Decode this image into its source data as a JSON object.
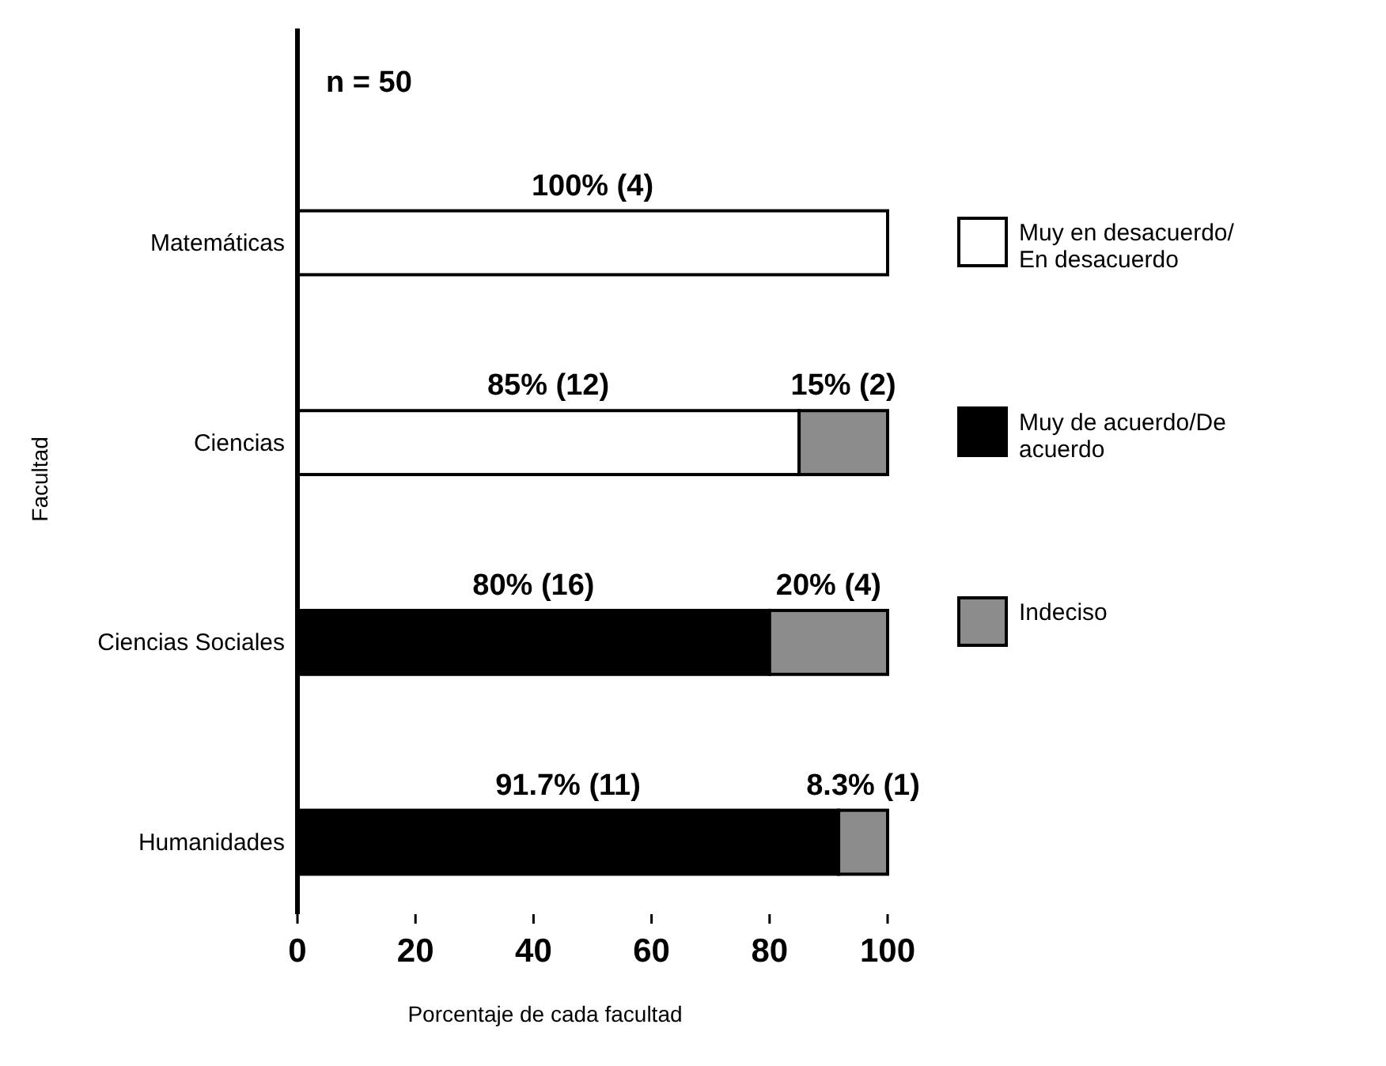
{
  "chart_data": {
    "type": "bar",
    "orientation": "horizontal",
    "stacked": true,
    "xlabel": "Porcentaje de cada facultad",
    "ylabel": "Facultad",
    "annotations": [
      "n = 50"
    ],
    "categories": [
      "Matemáticas",
      "Ciencias",
      "Ciencias Sociales",
      "Humanidades"
    ],
    "xlim": [
      0,
      100
    ],
    "xticks": [
      0,
      20,
      40,
      60,
      80,
      100
    ],
    "grid": false,
    "legend": "right",
    "series": [
      {
        "name": "Muy en desacuerdo/ En desacuerdo",
        "color": "#ffffff",
        "values": [
          100,
          85,
          null,
          null
        ],
        "value_labels": [
          "100% (4)",
          "85% (12)",
          null,
          null
        ]
      },
      {
        "name": "Muy de acuerdo/De acuerdo",
        "color": "#000000",
        "values": [
          null,
          null,
          80,
          91.7
        ],
        "value_labels": [
          null,
          null,
          "80% (16)",
          "91.7% (11)"
        ]
      },
      {
        "name": "Indeciso",
        "color": "#8c8c8c",
        "values": [
          null,
          15,
          20,
          8.3
        ],
        "value_labels": [
          null,
          "15% (2)",
          "20% (4)",
          "8.3% (1)"
        ]
      }
    ]
  }
}
